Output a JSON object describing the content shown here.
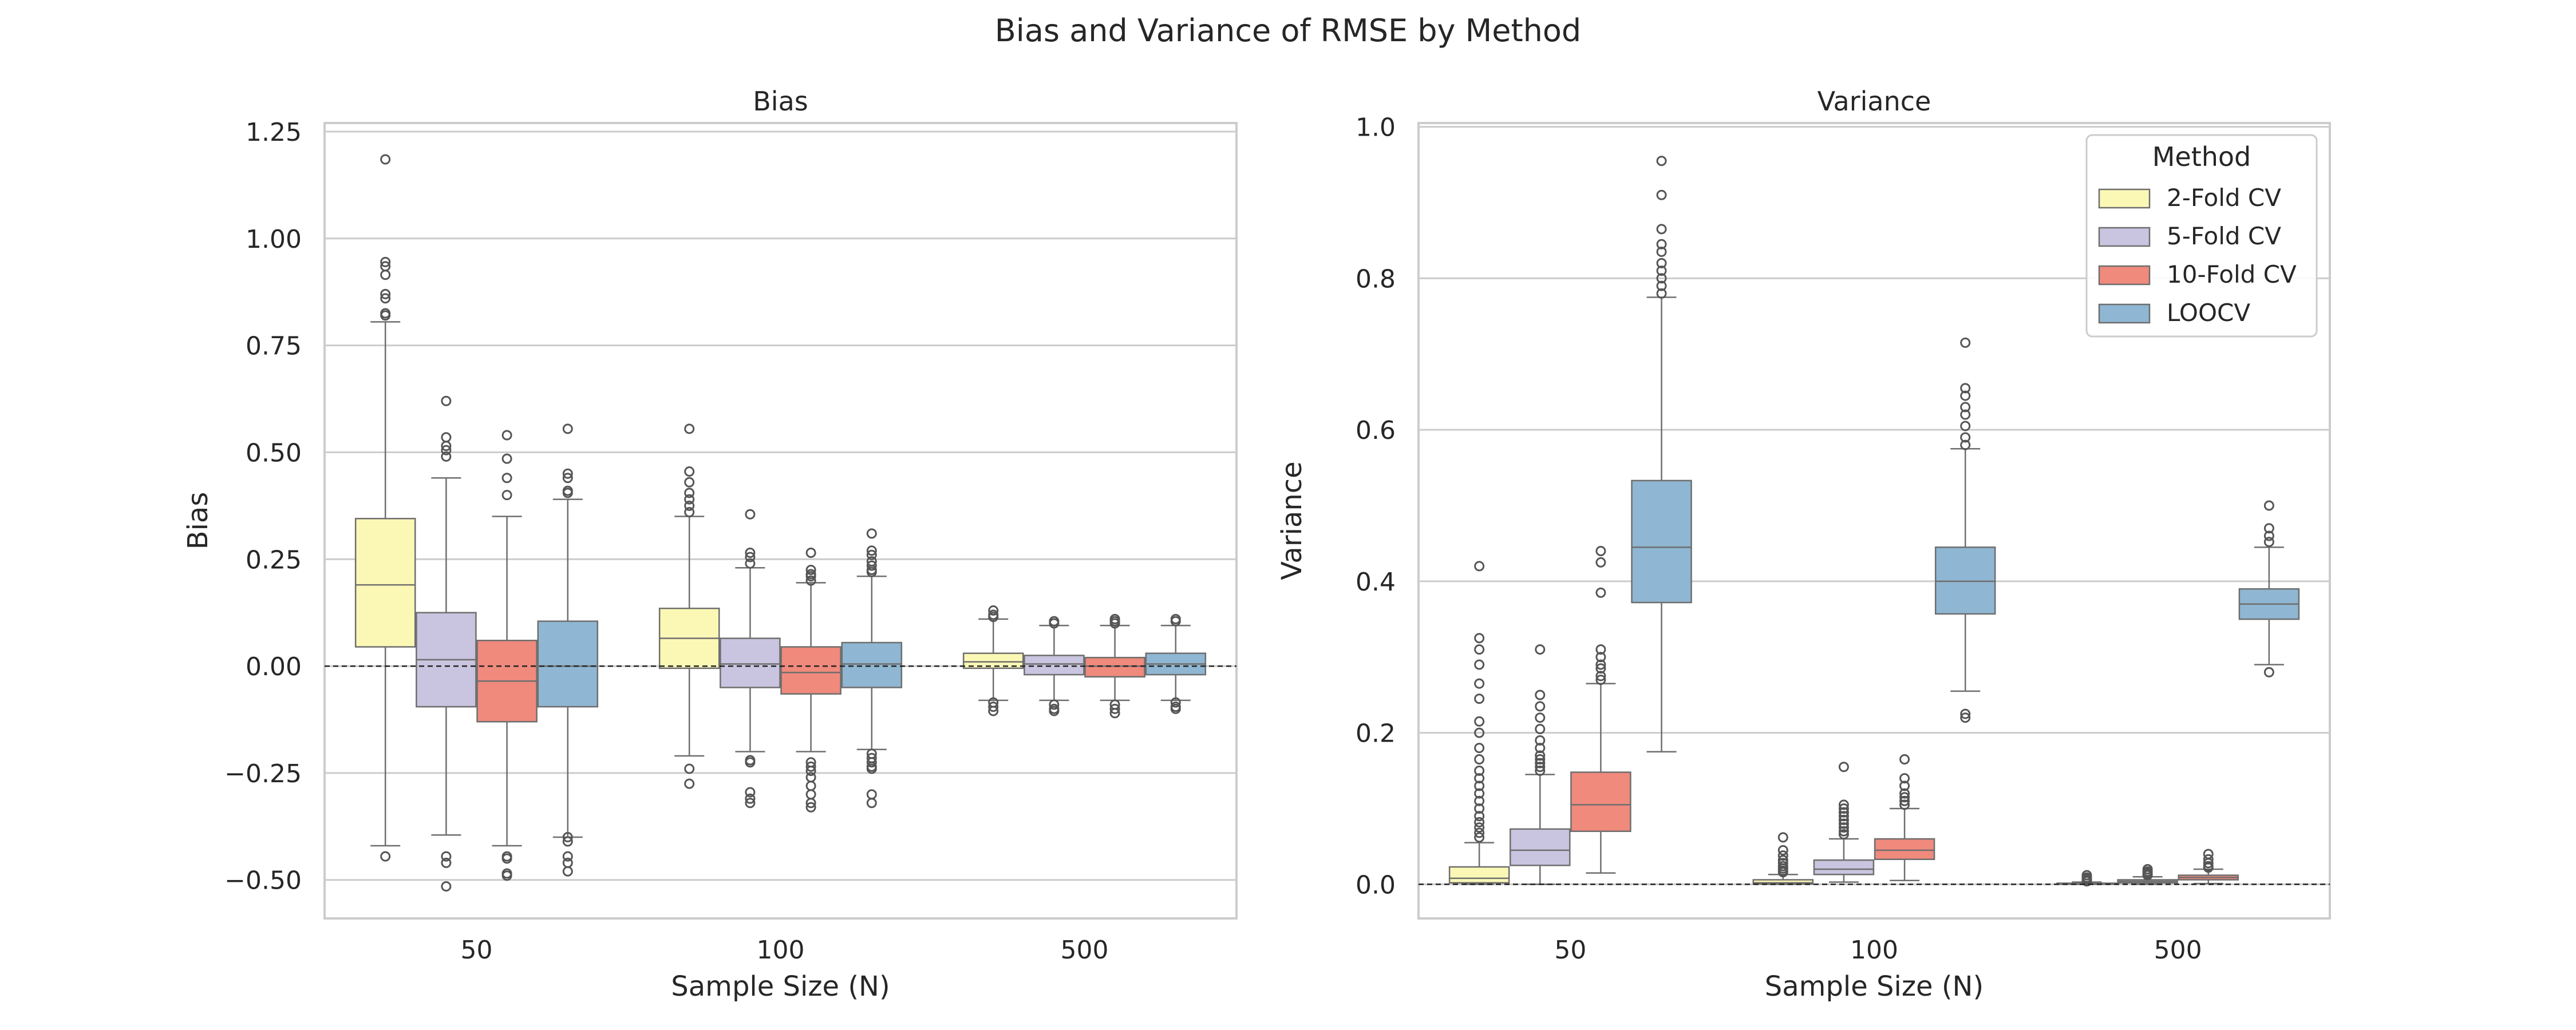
{
  "figure": {
    "suptitle": "Bias and Variance of RMSE by Method"
  },
  "colors": {
    "2-Fold CV": "#fbf8b6",
    "5-Fold CV": "#c9c4df",
    "10-Fold CV": "#ef8a7d",
    "LOOCV": "#8fb6d2",
    "box_edge": "#6e6e6e",
    "grid": "#cccccc",
    "frame": "#cccccc"
  },
  "chart_data": [
    {
      "type": "box",
      "title": "Bias",
      "xlabel": "Sample Size (N)",
      "ylabel": "Bias",
      "categories": [
        "50",
        "100",
        "500"
      ],
      "ylim": [
        -0.59,
        1.27
      ],
      "yticks": [
        -0.5,
        -0.25,
        0.0,
        0.25,
        0.5,
        0.75,
        1.0,
        1.25
      ],
      "ytick_labels": [
        "−0.50",
        "−0.25",
        "0.00",
        "0.25",
        "0.50",
        "0.75",
        "1.00",
        "1.25"
      ],
      "grid": true,
      "reference_line": 0,
      "legend": false,
      "series": [
        {
          "name": "2-Fold CV",
          "boxes": [
            {
              "whislo": -0.42,
              "q1": 0.045,
              "med": 0.19,
              "q3": 0.345,
              "whishi": 0.805,
              "fliers": [
                1.185,
                0.945,
                0.935,
                0.915,
                0.87,
                0.86,
                0.825,
                0.82,
                -0.445
              ]
            },
            {
              "whislo": -0.21,
              "q1": -0.005,
              "med": 0.065,
              "q3": 0.135,
              "whishi": 0.35,
              "fliers": [
                0.555,
                0.455,
                0.43,
                0.405,
                0.39,
                0.375,
                0.36,
                -0.24,
                -0.275
              ]
            },
            {
              "whislo": -0.08,
              "q1": -0.005,
              "med": 0.01,
              "q3": 0.03,
              "whishi": 0.11,
              "fliers": [
                0.13,
                0.12,
                0.115,
                -0.085,
                -0.095,
                -0.105
              ]
            }
          ]
        },
        {
          "name": "5-Fold CV",
          "boxes": [
            {
              "whislo": -0.395,
              "q1": -0.095,
              "med": 0.015,
              "q3": 0.125,
              "whishi": 0.44,
              "fliers": [
                0.62,
                0.535,
                0.515,
                0.505,
                0.49,
                -0.445,
                -0.46,
                -0.515
              ]
            },
            {
              "whislo": -0.2,
              "q1": -0.05,
              "med": 0.005,
              "q3": 0.065,
              "whishi": 0.23,
              "fliers": [
                0.355,
                0.265,
                0.255,
                0.24,
                -0.22,
                -0.225,
                -0.295,
                -0.31,
                -0.32
              ]
            },
            {
              "whislo": -0.08,
              "q1": -0.02,
              "med": 0.005,
              "q3": 0.025,
              "whishi": 0.095,
              "fliers": [
                0.105,
                0.1,
                -0.09,
                -0.1,
                -0.105
              ]
            }
          ]
        },
        {
          "name": "10-Fold CV",
          "boxes": [
            {
              "whislo": -0.42,
              "q1": -0.13,
              "med": -0.035,
              "q3": 0.06,
              "whishi": 0.35,
              "fliers": [
                0.54,
                0.485,
                0.44,
                0.4,
                -0.445,
                -0.45,
                -0.485,
                -0.49
              ]
            },
            {
              "whislo": -0.2,
              "q1": -0.065,
              "med": -0.015,
              "q3": 0.045,
              "whishi": 0.195,
              "fliers": [
                0.265,
                0.225,
                0.215,
                0.21,
                0.2,
                -0.225,
                -0.235,
                -0.245,
                -0.26,
                -0.28,
                -0.3,
                -0.32,
                -0.33
              ]
            },
            {
              "whislo": -0.08,
              "q1": -0.025,
              "med": 0.0,
              "q3": 0.02,
              "whishi": 0.095,
              "fliers": [
                0.11,
                0.105,
                0.1,
                -0.09,
                -0.1,
                -0.11
              ]
            }
          ]
        },
        {
          "name": "LOOCV",
          "boxes": [
            {
              "whislo": -0.4,
              "q1": -0.095,
              "med": 0.0,
              "q3": 0.105,
              "whishi": 0.39,
              "fliers": [
                0.555,
                0.45,
                0.44,
                0.41,
                0.405,
                -0.4,
                -0.41,
                -0.445,
                -0.46,
                -0.48
              ]
            },
            {
              "whislo": -0.195,
              "q1": -0.05,
              "med": 0.005,
              "q3": 0.055,
              "whishi": 0.21,
              "fliers": [
                0.31,
                0.27,
                0.26,
                0.245,
                0.235,
                0.225,
                0.22,
                -0.205,
                -0.215,
                -0.225,
                -0.235,
                -0.24,
                -0.3,
                -0.32
              ]
            },
            {
              "whislo": -0.08,
              "q1": -0.02,
              "med": 0.005,
              "q3": 0.03,
              "whishi": 0.095,
              "fliers": [
                0.11,
                0.105,
                -0.085,
                -0.095,
                -0.1
              ]
            }
          ]
        }
      ]
    },
    {
      "type": "box",
      "title": "Variance",
      "xlabel": "Sample Size (N)",
      "ylabel": "Variance",
      "categories": [
        "50",
        "100",
        "500"
      ],
      "ylim": [
        -0.045,
        1.005
      ],
      "yticks": [
        0.0,
        0.2,
        0.4,
        0.6,
        0.8,
        1.0
      ],
      "ytick_labels": [
        "0.0",
        "0.2",
        "0.4",
        "0.6",
        "0.8",
        "1.0"
      ],
      "grid": true,
      "reference_line": 0,
      "legend": {
        "title": "Method",
        "position": "top-right",
        "entries": [
          "2-Fold CV",
          "5-Fold CV",
          "10-Fold CV",
          "LOOCV"
        ]
      },
      "series": [
        {
          "name": "2-Fold CV",
          "boxes": [
            {
              "whislo": 0.0,
              "q1": 0.002,
              "med": 0.008,
              "q3": 0.023,
              "whishi": 0.055,
              "fliers": [
                0.42,
                0.325,
                0.31,
                0.29,
                0.265,
                0.245,
                0.215,
                0.2,
                0.18,
                0.165,
                0.15,
                0.14,
                0.13,
                0.12,
                0.11,
                0.1,
                0.09,
                0.082,
                0.075,
                0.068,
                0.062
              ]
            },
            {
              "whislo": 0.0,
              "q1": 0.0005,
              "med": 0.002,
              "q3": 0.006,
              "whishi": 0.013,
              "fliers": [
                0.062,
                0.045,
                0.038,
                0.032,
                0.028,
                0.024,
                0.021,
                0.018,
                0.016
              ]
            },
            {
              "whislo": 0.0,
              "q1": 0.0002,
              "med": 0.0006,
              "q3": 0.0015,
              "whishi": 0.003,
              "fliers": [
                0.012,
                0.009,
                0.007,
                0.005,
                0.004
              ]
            }
          ]
        },
        {
          "name": "5-Fold CV",
          "boxes": [
            {
              "whislo": 0.0,
              "q1": 0.025,
              "med": 0.045,
              "q3": 0.073,
              "whishi": 0.145,
              "fliers": [
                0.31,
                0.25,
                0.235,
                0.22,
                0.205,
                0.19,
                0.18,
                0.17,
                0.165,
                0.16,
                0.155,
                0.15
              ]
            },
            {
              "whislo": 0.003,
              "q1": 0.013,
              "med": 0.02,
              "q3": 0.032,
              "whishi": 0.06,
              "fliers": [
                0.155,
                0.105,
                0.1,
                0.095,
                0.09,
                0.085,
                0.08,
                0.075,
                0.07,
                0.066
              ]
            },
            {
              "whislo": 0.0,
              "q1": 0.002,
              "med": 0.004,
              "q3": 0.006,
              "whishi": 0.01,
              "fliers": [
                0.02,
                0.017,
                0.015,
                0.013,
                0.012
              ]
            }
          ]
        },
        {
          "name": "10-Fold CV",
          "boxes": [
            {
              "whislo": 0.015,
              "q1": 0.07,
              "med": 0.105,
              "q3": 0.148,
              "whishi": 0.265,
              "fliers": [
                0.44,
                0.425,
                0.385,
                0.31,
                0.3,
                0.29,
                0.285,
                0.275,
                0.27
              ]
            },
            {
              "whislo": 0.005,
              "q1": 0.033,
              "med": 0.045,
              "q3": 0.06,
              "whishi": 0.1,
              "fliers": [
                0.165,
                0.14,
                0.13,
                0.12,
                0.115,
                0.11,
                0.105
              ]
            },
            {
              "whislo": 0.001,
              "q1": 0.006,
              "med": 0.009,
              "q3": 0.012,
              "whishi": 0.02,
              "fliers": [
                0.04,
                0.033,
                0.028,
                0.024,
                0.022
              ]
            }
          ]
        },
        {
          "name": "LOOCV",
          "boxes": [
            {
              "whislo": 0.175,
              "q1": 0.372,
              "med": 0.445,
              "q3": 0.533,
              "whishi": 0.775,
              "fliers": [
                0.955,
                0.91,
                0.865,
                0.845,
                0.835,
                0.82,
                0.81,
                0.8,
                0.79,
                0.78
              ]
            },
            {
              "whislo": 0.255,
              "q1": 0.357,
              "med": 0.4,
              "q3": 0.445,
              "whishi": 0.575,
              "fliers": [
                0.715,
                0.655,
                0.645,
                0.63,
                0.62,
                0.605,
                0.59,
                0.58,
                0.225,
                0.22
              ]
            },
            {
              "whislo": 0.29,
              "q1": 0.35,
              "med": 0.37,
              "q3": 0.39,
              "whishi": 0.445,
              "fliers": [
                0.5,
                0.47,
                0.46,
                0.452,
                0.28
              ]
            }
          ]
        }
      ]
    }
  ]
}
